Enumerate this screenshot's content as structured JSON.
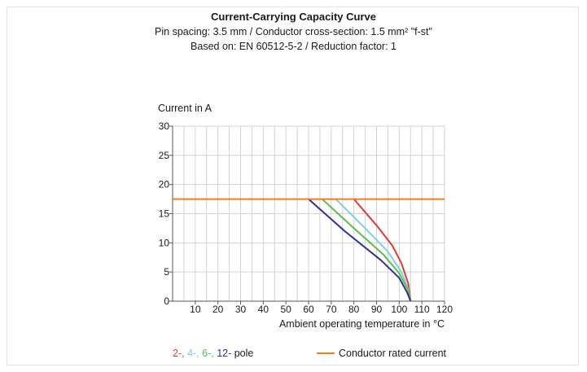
{
  "header": {
    "title": "Current-Carrying Capacity Curve",
    "subtitle1": "Pin spacing: 3.5 mm / Conductor cross-section: 1.5 mm² \"f-st\"",
    "subtitle2": "Based on: EN 60512-5-2 / Reduction factor: 1"
  },
  "chart_data": {
    "type": "line",
    "title": "Current-Carrying Capacity Curve",
    "xlabel": "Ambient operating temperature in °C",
    "ylabel": "Current in A",
    "xlim": [
      0,
      120
    ],
    "ylim": [
      0,
      30
    ],
    "xticks": [
      10,
      20,
      30,
      40,
      50,
      60,
      70,
      80,
      90,
      100,
      110,
      120
    ],
    "yticks": [
      0,
      5,
      10,
      15,
      20,
      25,
      30
    ],
    "grid": true,
    "series": [
      {
        "color": "#e03c31",
        "points": [
          [
            80,
            17.5
          ],
          [
            90,
            13
          ],
          [
            97,
            9.5
          ],
          [
            101,
            6.5
          ],
          [
            104,
            3
          ],
          [
            105,
            0
          ]
        ]
      },
      {
        "color": "#7fcfe0",
        "points": [
          [
            72,
            17.5
          ],
          [
            85,
            12.5
          ],
          [
            95,
            8.5
          ],
          [
            101,
            5
          ],
          [
            104,
            2
          ],
          [
            105,
            0
          ]
        ]
      },
      {
        "color": "#5cbf4a",
        "points": [
          [
            66,
            17.5
          ],
          [
            80,
            12.5
          ],
          [
            93,
            8
          ],
          [
            100,
            4.8
          ],
          [
            104,
            1.8
          ],
          [
            105,
            0
          ]
        ]
      },
      {
        "color": "#2e3192",
        "points": [
          [
            60,
            17.5
          ],
          [
            76,
            12
          ],
          [
            92,
            7
          ],
          [
            100,
            4
          ],
          [
            103.5,
            1.5
          ],
          [
            105,
            0
          ]
        ]
      },
      {
        "color": "#f07d1e",
        "points": [
          [
            0,
            17.5
          ],
          [
            120,
            17.5
          ]
        ]
      }
    ],
    "legend": {
      "placement": "bottom",
      "pole_items": [
        {
          "label": "2-",
          "color": "#e03c31"
        },
        {
          "label": "4-",
          "color": "#7fcfe0"
        },
        {
          "label": "6-",
          "color": "#5cbf4a"
        },
        {
          "label": "12-",
          "color": "#2e3192"
        }
      ],
      "pole_suffix": "pole",
      "rated_label": "Conductor rated current",
      "rated_color": "#f07d1e"
    }
  }
}
